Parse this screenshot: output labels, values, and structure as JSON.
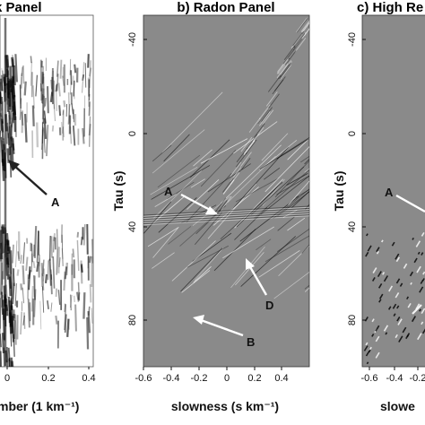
{
  "panels": [
    {
      "id": "a",
      "title": "k Panel"
    },
    {
      "id": "b",
      "title": "b) Radon Panel"
    },
    {
      "id": "c",
      "title": "c) High Re"
    }
  ],
  "panel_a": {
    "xlabel": "mber (1  km⁻¹)",
    "xticks": [
      "0",
      "0.2",
      "0.4"
    ],
    "callouts": [
      "A"
    ]
  },
  "panel_b": {
    "xlabel": "slowness (s  km⁻¹)",
    "ylabel": "Tau (s)",
    "xticks": [
      "-0.6",
      "-0.4",
      "-0.2",
      "0",
      "0.2",
      "0.4"
    ],
    "yticks": [
      "-40",
      "0",
      "40",
      "80"
    ],
    "callouts": [
      "A",
      "D",
      "B"
    ]
  },
  "panel_c": {
    "xlabel": "slowe",
    "ylabel": "Tau (s)",
    "xticks": [
      "-0.6",
      "-0.4",
      "-0.2"
    ],
    "yticks": [
      "-40",
      "0",
      "40",
      "80"
    ],
    "callouts": [
      "A"
    ]
  },
  "colors": {
    "background": "#ffffff",
    "panel_gray": "#8a8a8a",
    "ink": "#111111",
    "callout_arrow_b": "#ffffff",
    "callout_arrow_a": "#222222"
  }
}
